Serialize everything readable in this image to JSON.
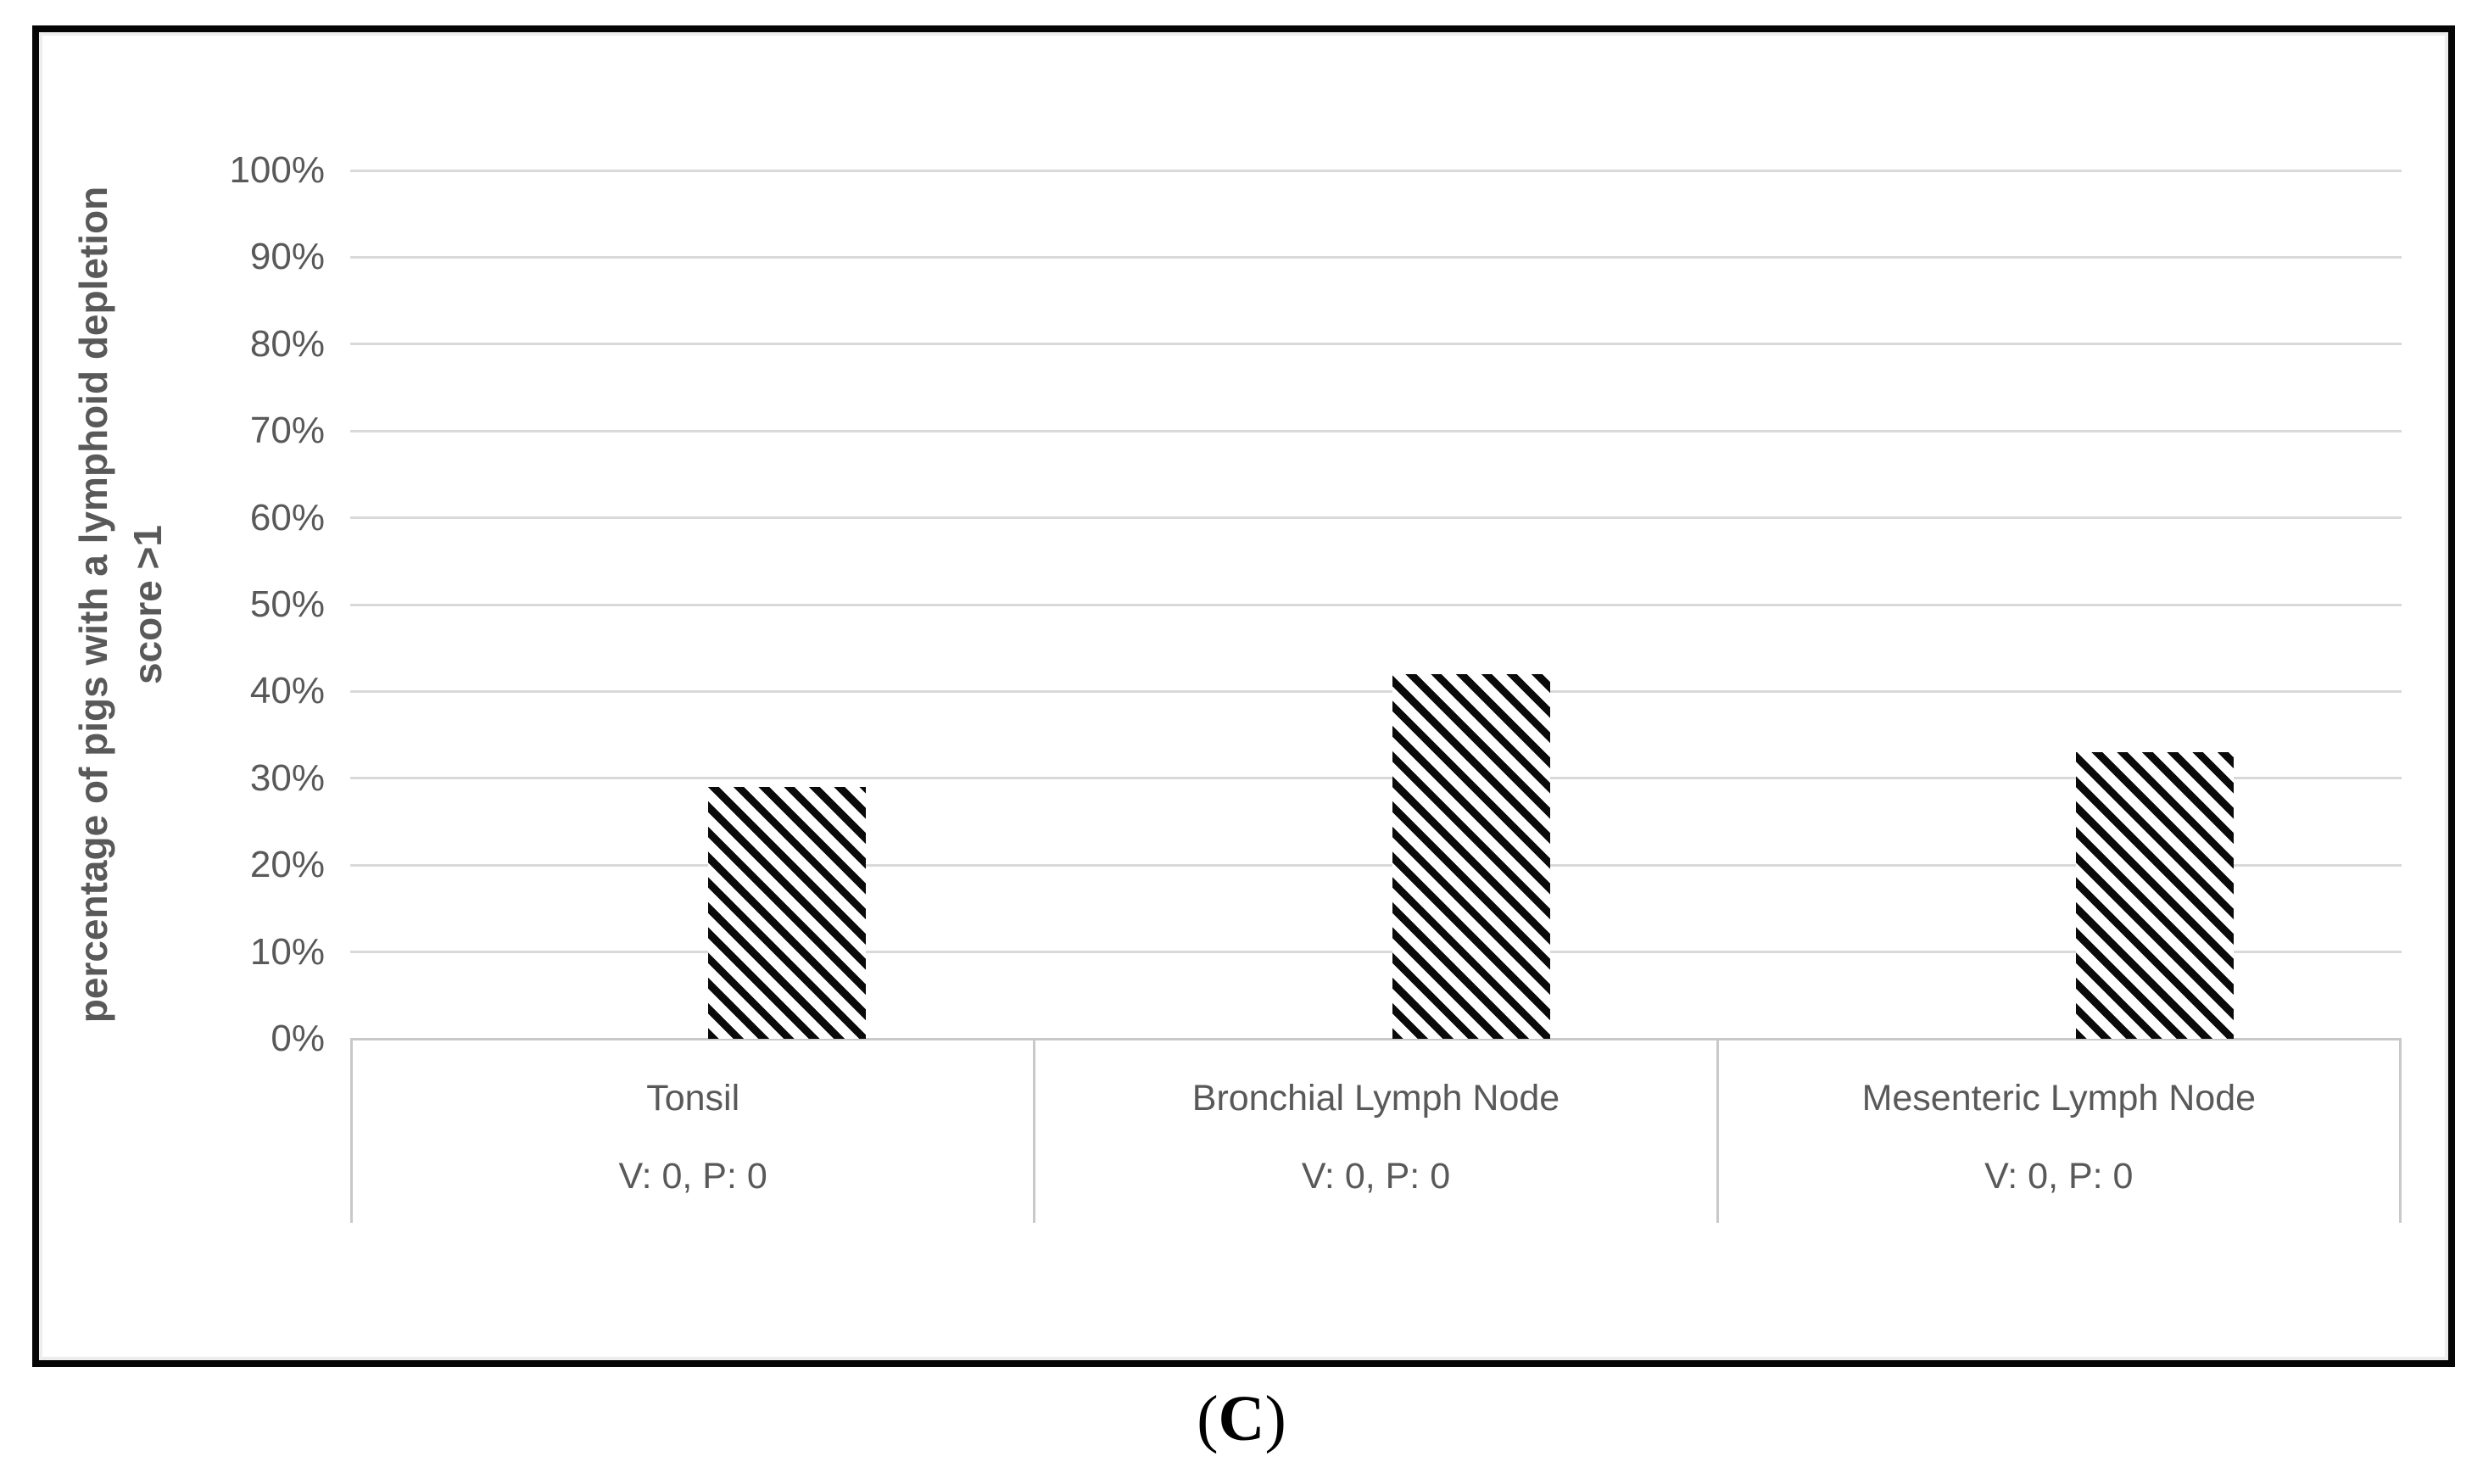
{
  "chart_data": {
    "type": "bar",
    "title": "",
    "categories": [
      {
        "label": "Tonsil",
        "sublabel": "V: 0, P: 0"
      },
      {
        "label": "Bronchial Lymph Node",
        "sublabel": "V: 0, P: 0"
      },
      {
        "label": "Mesenteric Lymph Node",
        "sublabel": "V: 0, P: 0"
      }
    ],
    "values": [
      29,
      42,
      33
    ],
    "values_note": "percent, estimated from gridlines",
    "ylabel_line1": "percentage of pigs with a lymphoid depletion",
    "ylabel_line2": "score >1",
    "xlabel": "",
    "ylim": [
      0,
      100
    ],
    "ytick_step": 10,
    "ytick_suffix": "%",
    "grid": true,
    "legend_position": "none",
    "bar_style": "black diagonal hatch on white"
  },
  "caption": {
    "open": "(",
    "letter": "C",
    "close": ")"
  },
  "colors": {
    "text": "#595959",
    "gridline": "#d9d9d9",
    "axis_line": "#c9c9c9",
    "bar_stripe": "#0a0a0a",
    "bar_background": "#ffffff",
    "figure_border": "#050505"
  }
}
